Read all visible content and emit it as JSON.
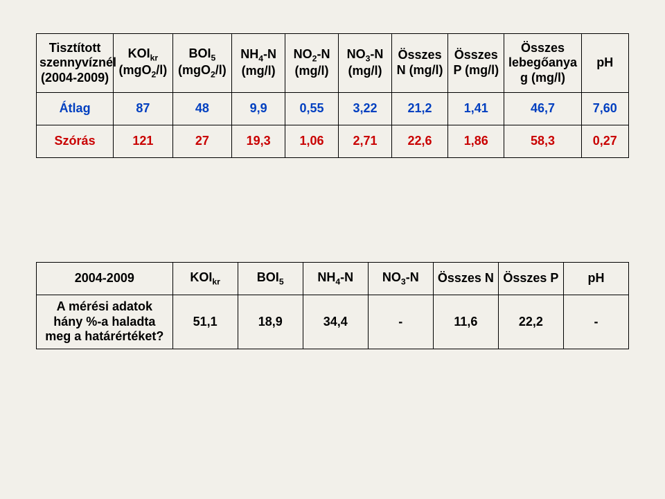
{
  "table1": {
    "headers": {
      "col0_l1": "Tisztított",
      "col0_l2": "szennyvíznél",
      "col0_l3": "(2004-2009)",
      "col1_l1": "KOI",
      "col1_sub": "kr",
      "col1_l2": "(mgO",
      "col1_l2sub": "2",
      "col1_l2end": "/l)",
      "col2_l1": "BOI",
      "col2_sub": "5",
      "col2_l2": "(mgO",
      "col2_l2sub": "2",
      "col2_l2end": "/l)",
      "col3_l1": "NH",
      "col3_sub": "4",
      "col3_end": "-N",
      "col3_l2": "(mg/l)",
      "col4_l1": "NO",
      "col4_sub": "2",
      "col4_end": "-N",
      "col4_l2": "(mg/l)",
      "col5_l1": "NO",
      "col5_sub": "3",
      "col5_end": "-N",
      "col5_l2": "(mg/l)",
      "col6_l1": "Összes",
      "col6_l2": "N (mg/l)",
      "col7_l1": "Összes",
      "col7_l2": "P (mg/l)",
      "col8_l1": "Összes",
      "col8_l2": "lebegőanya",
      "col8_l3": "g (mg/l)",
      "col9": "pH"
    },
    "rows": [
      {
        "label": "Átlag",
        "vals": [
          "87",
          "48",
          "9,9",
          "0,55",
          "3,22",
          "21,2",
          "1,41",
          "46,7",
          "7,60"
        ],
        "color": "blue"
      },
      {
        "label": "Szórás",
        "vals": [
          "121",
          "27",
          "19,3",
          "1,06",
          "2,71",
          "22,6",
          "1,86",
          "58,3",
          "0,27"
        ],
        "color": "red"
      }
    ]
  },
  "table2": {
    "headers": {
      "col0": "2004-2009",
      "col1_l1": "KOI",
      "col1_sub": "kr",
      "col2_l1": "BOI",
      "col2_sub": "5",
      "col3_l1": "NH",
      "col3_sub": "4",
      "col3_end": "-N",
      "col4_l1": "NO",
      "col4_sub": "3",
      "col4_end": "-N",
      "col5": "Összes N",
      "col6": "Összes P",
      "col7": "pH"
    },
    "row": {
      "label_l1": "A mérési adatok",
      "label_l2": "hány %-a haladta",
      "label_l3": "meg a határértéket?",
      "vals": [
        "51,1",
        "18,9",
        "34,4",
        "-",
        "11,6",
        "22,2",
        "-"
      ]
    }
  },
  "colors": {
    "blue": "#003fc0",
    "red": "#c90000",
    "border": "#000000",
    "background": "#f2f0ea"
  }
}
